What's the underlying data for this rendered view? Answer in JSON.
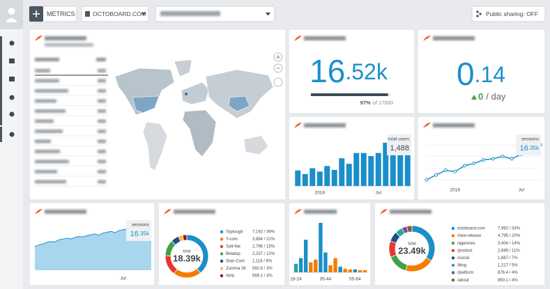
{
  "toolbar": {
    "metrics_button": "METRICS",
    "account_select": "OCTOBOARD.COM",
    "sharing_button": "Public sharing: OFF"
  },
  "visits_widget": {
    "value_main": "16",
    "value_fraction": ".52k",
    "progress": 97,
    "progress_label": "97%",
    "progress_target": "of 17000"
  },
  "bounce_widget": {
    "value_main": "0",
    "value_fraction": ".14",
    "change": "0",
    "change_unit": "/ day"
  },
  "new_users_chart": {
    "type": "bar",
    "color": "#1a8fc9",
    "categories": [
      null,
      null,
      null,
      "2018",
      null,
      null,
      null,
      null,
      null,
      null,
      null,
      "Jul",
      null,
      null,
      null,
      null
    ],
    "values": [
      560,
      430,
      640,
      520,
      720,
      580,
      1000,
      800,
      1190,
      1190,
      1080,
      1190,
      1560,
      1190,
      1190,
      1488
    ],
    "callout_label": "total users",
    "callout_value": "1,488"
  },
  "sessions_line_chart": {
    "type": "line",
    "color": "#1a8fc9",
    "categories": [
      null,
      null,
      null,
      "2018",
      null,
      null,
      null,
      null,
      null,
      null,
      "Jul",
      null,
      null
    ],
    "values": [
      560,
      600,
      640,
      630,
      680,
      700,
      730,
      740,
      760,
      740,
      780,
      800,
      860
    ],
    "callout_label": "sessions",
    "callout_value_main": "16",
    "callout_value_fraction": ".35k"
  },
  "sessions_area_chart": {
    "type": "area",
    "color": "#1a8fc9",
    "fill": "#a9d6ef",
    "categories": [
      null,
      null,
      null,
      null,
      null,
      null,
      null,
      null,
      null,
      null,
      null,
      null,
      null,
      null,
      null,
      null,
      null,
      null,
      null,
      null,
      null,
      null,
      "Jul",
      null,
      null,
      null,
      null,
      null,
      null,
      null
    ],
    "values": [
      280,
      300,
      310,
      330,
      340,
      335,
      360,
      370,
      380,
      370,
      390,
      400,
      395,
      410,
      420,
      430,
      415,
      440,
      450,
      460,
      445,
      470,
      480,
      490,
      500,
      495,
      510,
      520,
      530,
      545
    ],
    "callout_label": "sessions",
    "callout_value_main": "16",
    "callout_value_fraction": ".35k"
  },
  "top_products_chart": {
    "type": "pie",
    "center_label": "total",
    "center_value": "18.39k",
    "categories": [
      "Toptough",
      "Y-com",
      "Salt-Nix",
      "Betatop",
      "Stan-Com",
      "Zumma Sil",
      "Airla"
    ],
    "values": [
      7192,
      3884,
      2796,
      2237,
      1118,
      592.8,
      569.1
    ],
    "value_labels": [
      "7,192 / 39%",
      "3,884 / 21%",
      "2,796 / 15%",
      "2,237 / 12%",
      "1,118 / 6%",
      "592.8 / 3%",
      "569.1 / 3%"
    ],
    "colors": [
      "#1a8fc9",
      "#f57c00",
      "#e53935",
      "#43a047",
      "#1e4e8c",
      "#ffb74d",
      "#8e1b1b"
    ]
  },
  "demographics_chart": {
    "type": "bar",
    "categories": [
      "18-24",
      null,
      null,
      null,
      null,
      null,
      "35-44",
      null,
      null,
      null,
      null,
      null,
      "55-64",
      null,
      null
    ],
    "values": [
      12,
      20,
      46,
      14,
      18,
      70,
      28,
      10,
      20,
      8,
      5,
      4,
      4,
      3,
      3
    ],
    "colors": [
      "#26a69a",
      "#1a8fc9",
      "#1a8fc9",
      "#f57c00",
      "#f57c00",
      "#1a8fc9",
      "#1a8fc9",
      "#f57c00",
      "#f57c00",
      "#1a8fc9",
      "#f57c00",
      "#f57c00",
      "#1a8fc9",
      "#f57c00",
      "#f57c00"
    ]
  },
  "top_pages_chart": {
    "type": "pie",
    "center_label": "total",
    "center_value": "23.49k",
    "categories": [
      "octoboard.com",
      "/new-release",
      "/agencies",
      "/product",
      "/social",
      "/blog",
      "/platform",
      "/about"
    ],
    "values": [
      7992,
      4795,
      3404,
      2689,
      1667,
      1217,
      876.4,
      850.1
    ],
    "value_labels": [
      "7,992 / 34%",
      "4,795 / 20%",
      "3,404 / 14%",
      "2,689 / 11%",
      "1,667 / 7%",
      "1,217 / 5%",
      "876.4 / 4%",
      "850.1 / 4%"
    ],
    "colors": [
      "#1a8fc9",
      "#f57c00",
      "#43a047",
      "#e53935",
      "#1e4e8c",
      "#26a69a",
      "#7b4fa0",
      "#8d5a3b"
    ]
  }
}
